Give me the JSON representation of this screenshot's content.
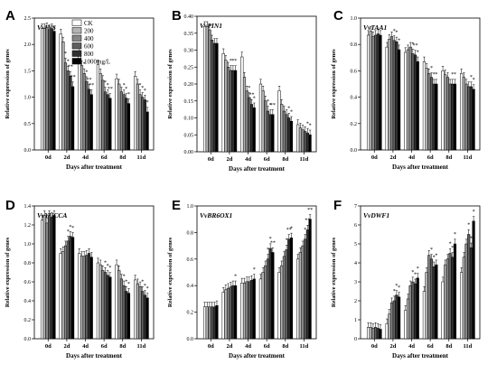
{
  "figure": {
    "legend": [
      "CK",
      "200",
      "400",
      "600",
      "800",
      "1000mg/L"
    ],
    "colors": [
      "#ffffff",
      "#b3b3b3",
      "#878787",
      "#5e5e5e",
      "#303030",
      "#000000"
    ],
    "grid": false,
    "legend_placement": "top-right of panel A"
  },
  "chart_data": [
    {
      "type": "bar",
      "panel": "A",
      "gene": "VvINS",
      "categories": [
        "0d",
        "2d",
        "4d",
        "6d",
        "8d",
        "11d"
      ],
      "ylabel": "Relative expression of genes",
      "xlabel": "Days after treatment",
      "ylim": [
        0,
        2.5
      ],
      "yticks": [
        "0.0",
        "0.5",
        "1.0",
        "1.5",
        "2.0",
        "2.5"
      ],
      "series": [
        {
          "name": "CK",
          "values": [
            2.3,
            2.2,
            1.85,
            1.62,
            1.35,
            1.4
          ]
        },
        {
          "name": "200",
          "values": [
            2.3,
            2.05,
            1.6,
            1.45,
            1.25,
            1.25
          ]
        },
        {
          "name": "400",
          "values": [
            2.32,
            1.65,
            1.45,
            1.32,
            1.1,
            1.05
          ]
        },
        {
          "name": "600",
          "values": [
            2.28,
            1.5,
            1.3,
            1.1,
            1.05,
            1.0
          ]
        },
        {
          "name": "800",
          "values": [
            2.3,
            1.4,
            1.15,
            1.05,
            0.98,
            0.95
          ]
        },
        {
          "name": "1000mg/L",
          "values": [
            2.25,
            1.2,
            1.05,
            0.98,
            0.88,
            0.72
          ]
        }
      ],
      "stars": [
        [],
        [
          "*",
          "*",
          "**",
          "**"
        ],
        [
          "*",
          "*",
          "**",
          "**"
        ],
        [
          "*",
          "*",
          "**"
        ],
        [
          "*",
          "*",
          "*"
        ],
        [
          "*",
          "*",
          "*",
          "*"
        ]
      ]
    },
    {
      "type": "bar",
      "panel": "B",
      "gene": "VvPIN1",
      "categories": [
        "0d",
        "2d",
        "4d",
        "6d",
        "8d",
        "11d"
      ],
      "ylabel": "Relative expression of genes",
      "xlabel": "Days after treatment",
      "ylim": [
        0,
        0.4
      ],
      "yticks": [
        "0.00",
        "0.05",
        "0.10",
        "0.15",
        "0.20",
        "0.25",
        "0.30",
        "0.35",
        "0.40"
      ],
      "series": [
        {
          "name": "CK",
          "values": [
            0.37,
            0.29,
            0.28,
            0.2,
            0.18,
            0.08
          ]
        },
        {
          "name": "200",
          "values": [
            0.37,
            0.27,
            0.22,
            0.18,
            0.14,
            0.07
          ]
        },
        {
          "name": "400",
          "values": [
            0.36,
            0.25,
            0.18,
            0.15,
            0.12,
            0.065
          ]
        },
        {
          "name": "600",
          "values": [
            0.33,
            0.24,
            0.16,
            0.12,
            0.11,
            0.06
          ]
        },
        {
          "name": "800",
          "values": [
            0.32,
            0.24,
            0.14,
            0.11,
            0.1,
            0.055
          ]
        },
        {
          "name": "1000mg/L",
          "values": [
            0.32,
            0.24,
            0.13,
            0.11,
            0.09,
            0.05
          ]
        }
      ],
      "stars": [
        [],
        [
          "*",
          "*",
          "*"
        ],
        [
          "*",
          "**",
          "*"
        ],
        [
          "*",
          "*",
          "**"
        ],
        [
          "*",
          "*"
        ],
        [
          "*",
          "*"
        ]
      ]
    },
    {
      "type": "bar",
      "panel": "C",
      "gene": "VvTAA1",
      "categories": [
        "0d",
        "2d",
        "4d",
        "6d",
        "8d",
        "11d"
      ],
      "ylabel": "Relative expression of genes",
      "xlabel": "Days after treatment",
      "ylim": [
        0,
        1.0
      ],
      "yticks": [
        "0.0",
        "0.2",
        "0.4",
        "0.6",
        "0.8",
        "1.0"
      ],
      "series": [
        {
          "name": "CK",
          "values": [
            0.87,
            0.78,
            0.74,
            0.67,
            0.6,
            0.58
          ]
        },
        {
          "name": "200",
          "values": [
            0.9,
            0.84,
            0.76,
            0.62,
            0.57,
            0.55
          ]
        },
        {
          "name": "400",
          "values": [
            0.86,
            0.86,
            0.78,
            0.58,
            0.55,
            0.5
          ]
        },
        {
          "name": "600",
          "values": [
            0.87,
            0.83,
            0.73,
            0.55,
            0.5,
            0.48
          ]
        },
        {
          "name": "800",
          "values": [
            0.88,
            0.82,
            0.72,
            0.5,
            0.5,
            0.48
          ]
        },
        {
          "name": "1000mg/L",
          "values": [
            0.87,
            0.76,
            0.67,
            0.5,
            0.5,
            0.46
          ]
        }
      ],
      "stars": [
        [],
        [
          "*",
          "*",
          "*"
        ],
        [
          "*",
          "**",
          "*"
        ],
        [
          "*",
          "*",
          "*"
        ],
        [
          "*",
          "*"
        ],
        [
          "*",
          "*"
        ]
      ]
    },
    {
      "type": "bar",
      "panel": "D",
      "gene": "VvYUCCA",
      "categories": [
        "0d",
        "2d",
        "4d",
        "6d",
        "8d",
        "11d"
      ],
      "ylabel": "Relative expression of genes",
      "xlabel": "Days after treatment",
      "ylim": [
        0,
        1.4
      ],
      "yticks": [
        "0.0",
        "0.2",
        "0.4",
        "0.6",
        "0.8",
        "1.0",
        "1.2",
        "1.4"
      ],
      "series": [
        {
          "name": "CK",
          "values": [
            1.25,
            0.9,
            0.9,
            0.8,
            0.78,
            0.62
          ]
        },
        {
          "name": "200",
          "values": [
            1.3,
            0.92,
            0.87,
            0.78,
            0.72,
            0.58
          ]
        },
        {
          "name": "400",
          "values": [
            1.22,
            0.98,
            0.87,
            0.72,
            0.63,
            0.55
          ]
        },
        {
          "name": "600",
          "values": [
            1.3,
            1.03,
            0.88,
            0.7,
            0.56,
            0.5
          ]
        },
        {
          "name": "800",
          "values": [
            1.28,
            1.08,
            0.9,
            0.67,
            0.5,
            0.46
          ]
        },
        {
          "name": "1000mg/L",
          "values": [
            1.3,
            1.07,
            0.86,
            0.65,
            0.48,
            0.43
          ]
        }
      ],
      "stars": [
        [],
        [
          "*",
          "*",
          "*"
        ],
        [],
        [
          "*",
          "*",
          "*"
        ],
        [
          "*",
          "*",
          "*"
        ],
        [
          "*",
          "*",
          "*"
        ]
      ]
    },
    {
      "type": "bar",
      "panel": "E",
      "gene": "VvBR6OX1",
      "categories": [
        "0d",
        "2d",
        "4d",
        "6d",
        "8d",
        "11d"
      ],
      "ylabel": "Relative expression of genes",
      "xlabel": "Days after treatment",
      "ylim": [
        0,
        1.0
      ],
      "yticks": [
        "0.0",
        "0.2",
        "0.4",
        "0.6",
        "0.8",
        "1.0"
      ],
      "series": [
        {
          "name": "CK",
          "values": [
            0.24,
            0.35,
            0.42,
            0.45,
            0.5,
            0.6
          ]
        },
        {
          "name": "200",
          "values": [
            0.24,
            0.37,
            0.42,
            0.5,
            0.55,
            0.65
          ]
        },
        {
          "name": "400",
          "values": [
            0.24,
            0.38,
            0.43,
            0.55,
            0.62,
            0.7
          ]
        },
        {
          "name": "600",
          "values": [
            0.24,
            0.39,
            0.43,
            0.6,
            0.67,
            0.75
          ]
        },
        {
          "name": "800",
          "values": [
            0.24,
            0.4,
            0.44,
            0.68,
            0.75,
            0.82
          ]
        },
        {
          "name": "1000mg/L",
          "values": [
            0.25,
            0.4,
            0.45,
            0.65,
            0.76,
            0.9
          ]
        }
      ],
      "stars": [
        [],
        [
          "*"
        ],
        [
          "*"
        ],
        [
          "*",
          "*",
          "**"
        ],
        [
          "*",
          "**",
          "*"
        ],
        [
          "*",
          "**",
          "**"
        ]
      ]
    },
    {
      "type": "bar",
      "panel": "F",
      "gene": "VvDWF1",
      "categories": [
        "0d",
        "2d",
        "4d",
        "6d",
        "8d",
        "11d"
      ],
      "ylabel": "Relative expression of genes",
      "xlabel": "Days after treatment",
      "ylim": [
        0,
        7
      ],
      "yticks": [
        "0",
        "1",
        "2",
        "3",
        "4",
        "5",
        "6",
        "7"
      ],
      "series": [
        {
          "name": "CK",
          "values": [
            0.6,
            0.8,
            1.5,
            2.5,
            3.0,
            3.5
          ]
        },
        {
          "name": "200",
          "values": [
            0.6,
            1.3,
            2.1,
            3.5,
            3.9,
            4.3
          ]
        },
        {
          "name": "400",
          "values": [
            0.55,
            1.9,
            2.8,
            4.4,
            4.2,
            5.0
          ]
        },
        {
          "name": "600",
          "values": [
            0.6,
            2.0,
            3.0,
            4.2,
            4.5,
            5.5
          ]
        },
        {
          "name": "800",
          "values": [
            0.55,
            2.3,
            2.9,
            3.8,
            4.3,
            4.8
          ]
        },
        {
          "name": "1000mg/L",
          "values": [
            0.5,
            2.2,
            3.2,
            3.9,
            5.0,
            6.2
          ]
        }
      ],
      "stars": [
        [],
        [
          "*",
          "*",
          "*"
        ],
        [
          "*",
          "*",
          "*"
        ],
        [
          "*",
          "*",
          "*"
        ],
        [
          "*",
          "*",
          "*"
        ],
        [
          "*",
          "*",
          "*"
        ]
      ]
    }
  ]
}
